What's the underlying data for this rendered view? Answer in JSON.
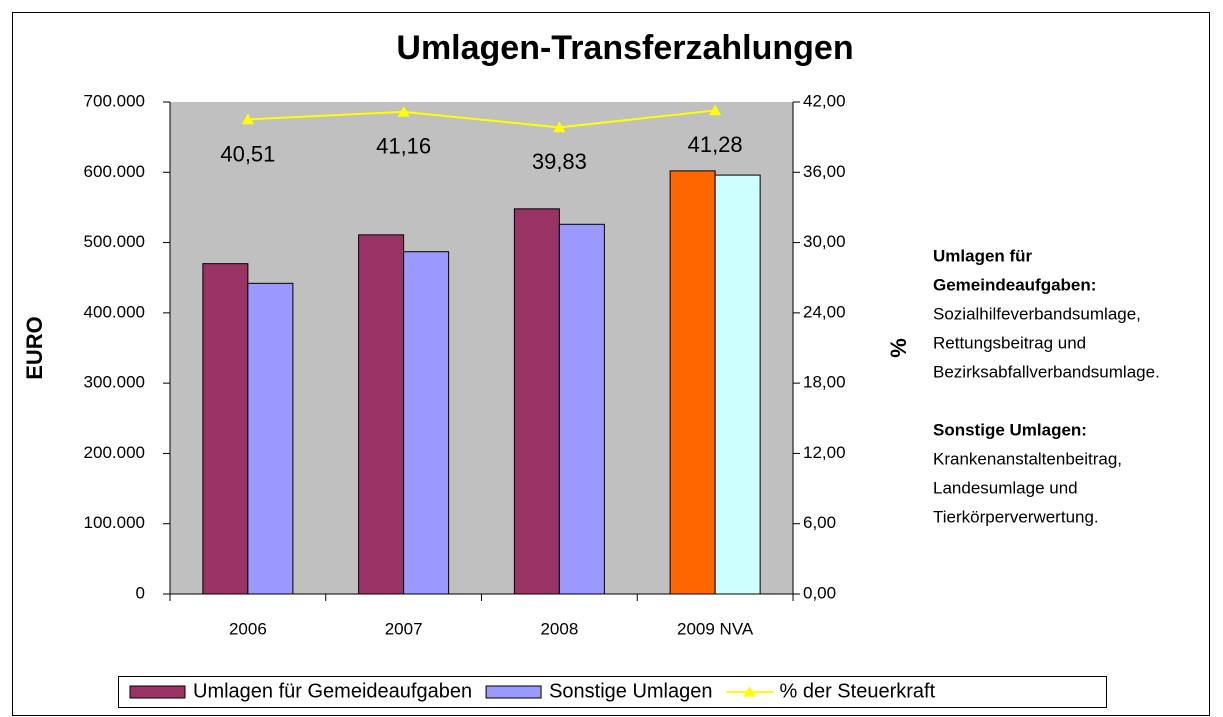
{
  "chart_data": {
    "type": "bar",
    "title": "Umlagen-Transferzahlungen",
    "ylabel": "EURO",
    "y2label": "%",
    "categories": [
      "2006",
      "2007",
      "2008",
      "2009 NVA"
    ],
    "series": [
      {
        "name": "Umlagen für Gemeideaufgaben",
        "color": "#993366",
        "colors": [
          "#993366",
          "#993366",
          "#993366",
          "#ff6600"
        ],
        "values": [
          470000,
          511000,
          548000,
          602000
        ]
      },
      {
        "name": "Sonstige Umlagen",
        "color": "#9999ff",
        "colors": [
          "#9999ff",
          "#9999ff",
          "#9999ff",
          "#ccffff"
        ],
        "values": [
          442000,
          487000,
          526000,
          596000
        ]
      },
      {
        "name": "% der Steuerkraft",
        "type": "line",
        "axis": "y2",
        "color": "#ffff00",
        "values": [
          40.51,
          41.16,
          39.83,
          41.28
        ],
        "value_labels": [
          "40,51",
          "41,16",
          "39,83",
          "41,28"
        ]
      }
    ],
    "ylim": [
      0,
      700000
    ],
    "yticks": [
      0,
      {
        "value": 100000,
        "label": "100.000"
      },
      {
        "value": 200000,
        "label": "200.000"
      },
      {
        "value": 300000,
        "label": "300.000"
      },
      {
        "value": 400000,
        "label": "400.000"
      },
      {
        "value": 500000,
        "label": "500.000"
      },
      {
        "value": 600000,
        "label": "600.000"
      },
      {
        "value": 700000,
        "label": "700.000"
      }
    ],
    "y2lim": [
      0,
      42
    ],
    "y2ticks": [
      {
        "value": 0,
        "label": "0,00"
      },
      {
        "value": 6,
        "label": "6,00"
      },
      {
        "value": 12,
        "label": "12,00"
      },
      {
        "value": 18,
        "label": "18,00"
      },
      {
        "value": 24,
        "label": "24,00"
      },
      {
        "value": 30,
        "label": "30,00"
      },
      {
        "value": 36,
        "label": "36,00"
      },
      {
        "value": 42,
        "label": "42,00"
      }
    ],
    "plot_background": "#c0c0c0",
    "legend": "bottom",
    "notes": [
      {
        "heading": [
          "Umlagen für",
          "Gemeindeaufgaben:"
        ],
        "lines": [
          "Sozialhilfeverbandsumlage,",
          "Rettungsbeitrag und",
          "Bezirksabfallverbandsumlage."
        ]
      },
      {
        "heading": [
          "Sonstige Umlagen:"
        ],
        "lines": [
          "Krankenanstaltenbeitrag,",
          "Landesumlage und",
          "Tierkörperverwertung."
        ]
      }
    ]
  }
}
